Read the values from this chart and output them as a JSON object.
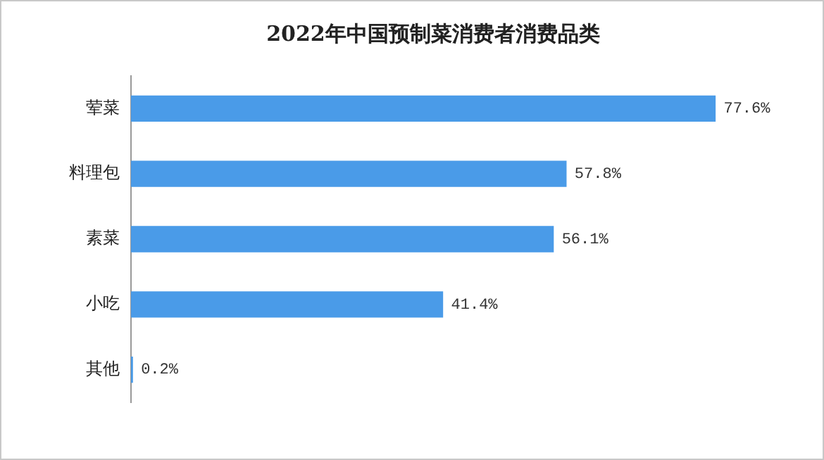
{
  "chart_data": {
    "type": "bar",
    "orientation": "horizontal",
    "title": "2022年中国预制菜消费者消费品类",
    "categories": [
      "荤菜",
      "料理包",
      "素菜",
      "小吃",
      "其他"
    ],
    "values": [
      77.6,
      57.8,
      56.1,
      41.4,
      0.2
    ],
    "color": "#4a9be8",
    "value_labels": [
      "77.6%",
      "57.8%",
      "56.1%",
      "41.4%",
      "0.2%"
    ],
    "legend": false
  }
}
